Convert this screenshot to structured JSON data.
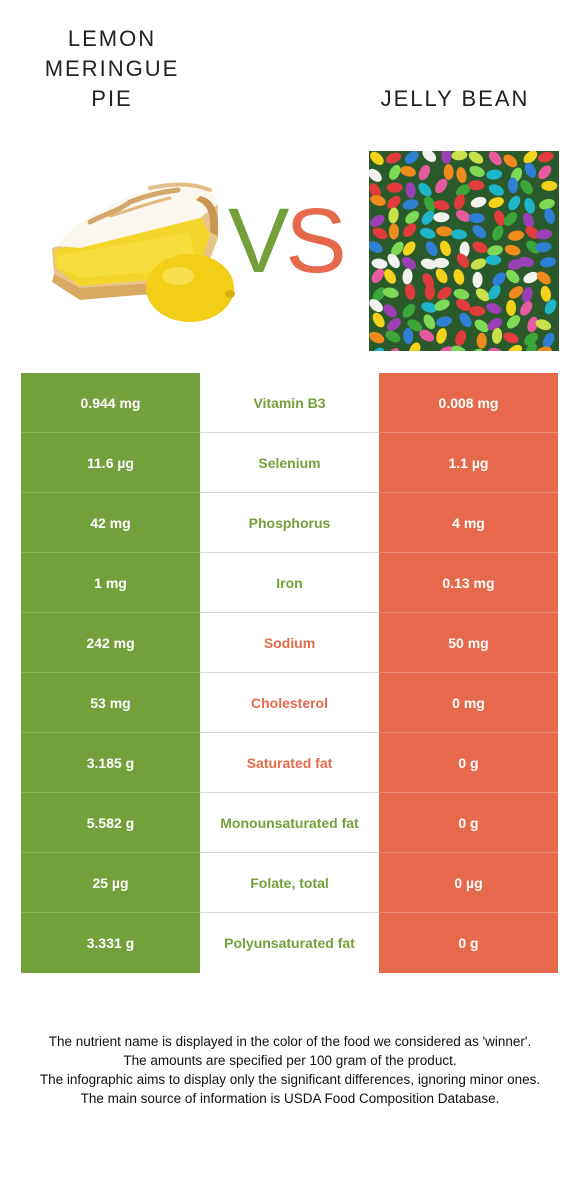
{
  "left_food": {
    "name_lines": [
      "LEMON",
      "MERINGUE",
      "PIE"
    ],
    "color": "#74a03b"
  },
  "right_food": {
    "name_lines": [
      "JELLY BEAN"
    ],
    "color": "#e5694a"
  },
  "vs": {
    "v": "V",
    "s": "S"
  },
  "rows": [
    {
      "left": "0.944 mg",
      "nutrient": "Vitamin B3",
      "right": "0.008 mg",
      "winner": "left"
    },
    {
      "left": "11.6 µg",
      "nutrient": "Selenium",
      "right": "1.1 µg",
      "winner": "left"
    },
    {
      "left": "42 mg",
      "nutrient": "Phosphorus",
      "right": "4 mg",
      "winner": "left"
    },
    {
      "left": "1 mg",
      "nutrient": "Iron",
      "right": "0.13 mg",
      "winner": "left"
    },
    {
      "left": "242 mg",
      "nutrient": "Sodium",
      "right": "50 mg",
      "winner": "right"
    },
    {
      "left": "53 mg",
      "nutrient": "Cholesterol",
      "right": "0 mg",
      "winner": "right"
    },
    {
      "left": "3.185 g",
      "nutrient": "Saturated fat",
      "right": "0 g",
      "winner": "right"
    },
    {
      "left": "5.582 g",
      "nutrient": "Monounsaturated fat",
      "right": "0 g",
      "winner": "left"
    },
    {
      "left": "25 µg",
      "nutrient": "Folate, total",
      "right": "0 µg",
      "winner": "left"
    },
    {
      "left": "3.331 g",
      "nutrient": "Polyunsaturated fat",
      "right": "0 g",
      "winner": "left"
    }
  ],
  "notes": [
    "The nutrient name is displayed in the color of the food we considered as 'winner'.",
    "The amounts are specified per 100 gram of the product.",
    "The infographic aims to display only the significant differences, ignoring minor ones.",
    "The main source of information is USDA Food Composition Database."
  ]
}
